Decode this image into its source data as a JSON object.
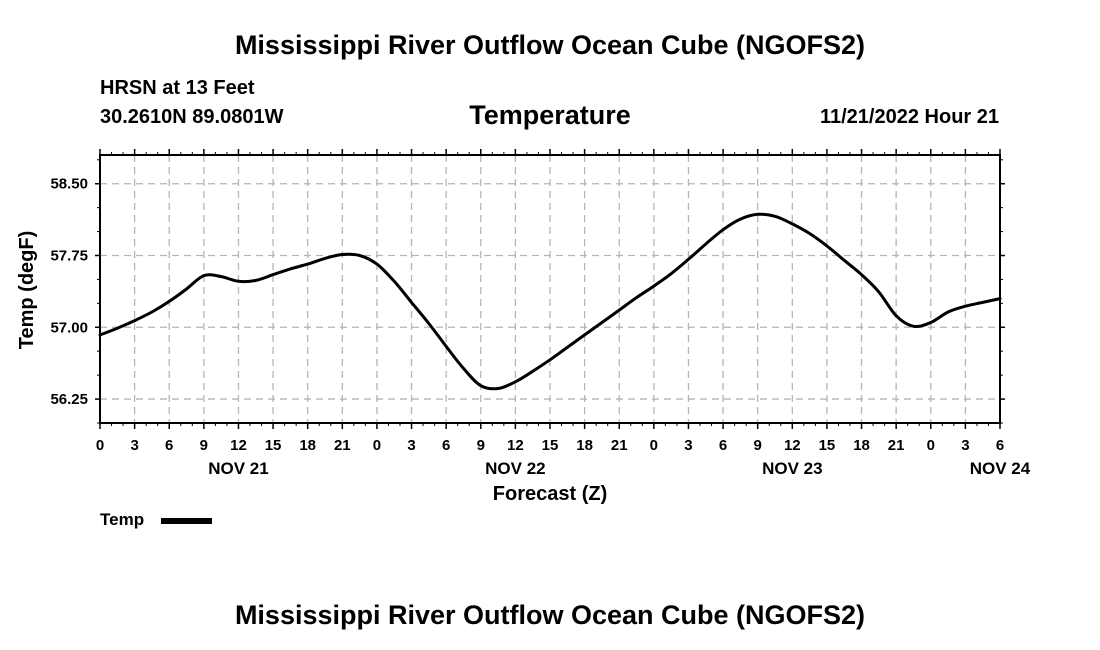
{
  "header": {
    "title": "Mississippi River Outflow Ocean Cube (NGOFS2)",
    "station": "HRSN at 13 Feet",
    "coordinates": "30.2610N  89.0801W",
    "variable": "Temperature",
    "datetime": "11/21/2022 Hour 21"
  },
  "footer": {
    "title": "Mississippi River Outflow Ocean Cube (NGOFS2)"
  },
  "legend": {
    "label": "Temp"
  },
  "chart_data": {
    "type": "line",
    "title": "Temperature",
    "xlabel": "Forecast (Z)",
    "ylabel": "Temp (degF)",
    "x_unit": "hours from NOV 21 00Z",
    "xlim": [
      0,
      78
    ],
    "ylim": [
      56.0,
      58.8
    ],
    "grid": true,
    "y_ticks": [
      56.25,
      57.0,
      57.75,
      58.5
    ],
    "y_tick_labels": [
      "56.25",
      "57.00",
      "57.75",
      "58.50"
    ],
    "x_ticks": [
      0,
      3,
      6,
      9,
      12,
      15,
      18,
      21,
      24,
      27,
      30,
      33,
      36,
      39,
      42,
      45,
      48,
      51,
      54,
      57,
      60,
      63,
      66,
      69,
      72,
      75,
      78
    ],
    "x_tick_labels": [
      "0",
      "3",
      "6",
      "9",
      "12",
      "15",
      "18",
      "21",
      "0",
      "3",
      "6",
      "9",
      "12",
      "15",
      "18",
      "21",
      "0",
      "3",
      "6",
      "9",
      "12",
      "15",
      "18",
      "21",
      "0",
      "3",
      "6"
    ],
    "date_labels": [
      {
        "x": 12,
        "label": "NOV 21"
      },
      {
        "x": 36,
        "label": "NOV 22"
      },
      {
        "x": 60,
        "label": "NOV 23"
      },
      {
        "x": 78,
        "label": "NOV 24"
      }
    ],
    "series": [
      {
        "name": "Temp",
        "x": [
          0,
          1.5,
          3,
          4.5,
          6,
          7.5,
          9,
          10.5,
          12,
          13.5,
          15,
          16.5,
          18,
          19.5,
          21,
          22.5,
          24,
          25.5,
          27,
          28.5,
          30,
          31.5,
          33,
          34.5,
          36,
          37.5,
          39,
          40.5,
          42,
          43.5,
          45,
          46.5,
          48,
          49.5,
          51,
          52.5,
          54,
          55.5,
          57,
          58.5,
          60,
          61.5,
          63,
          64.5,
          66,
          67.5,
          69,
          70.5,
          72,
          73.5,
          75,
          76.5,
          78
        ],
        "y": [
          56.92,
          56.99,
          57.07,
          57.16,
          57.27,
          57.4,
          57.54,
          57.53,
          57.48,
          57.49,
          57.55,
          57.61,
          57.66,
          57.72,
          57.76,
          57.75,
          57.66,
          57.48,
          57.26,
          57.04,
          56.8,
          56.57,
          56.39,
          56.36,
          56.43,
          56.54,
          56.66,
          56.79,
          56.92,
          57.05,
          57.18,
          57.31,
          57.43,
          57.56,
          57.71,
          57.87,
          58.02,
          58.13,
          58.18,
          58.16,
          58.08,
          57.98,
          57.85,
          57.7,
          57.55,
          57.37,
          57.12,
          57.01,
          57.05,
          57.16,
          57.22,
          57.26,
          57.3
        ]
      }
    ]
  }
}
